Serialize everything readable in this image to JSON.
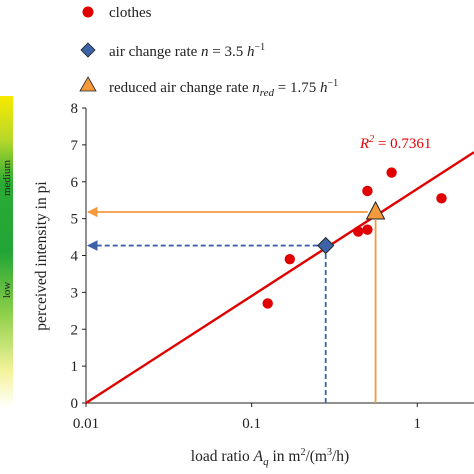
{
  "chart_data": {
    "type": "scatter",
    "x_scale": "log",
    "xlim": [
      0.01,
      2.2
    ],
    "ylim": [
      0,
      8
    ],
    "x_ticks": [
      "0.01",
      "0.1",
      "1"
    ],
    "x_tick_values": [
      0.01,
      0.1,
      1
    ],
    "y_ticks": [
      "0",
      "1",
      "2",
      "3",
      "4",
      "5",
      "6",
      "7",
      "8"
    ],
    "y_tick_values": [
      0,
      1,
      2,
      3,
      4,
      5,
      6,
      7,
      8
    ],
    "xlabel": "load ratio A_q in m²/(m³/h)",
    "xlabel_parts": {
      "pre": "load ratio ",
      "var": "A",
      "sub": "q",
      "post": " in m²/(m³/h)"
    },
    "ylabel": "perceived intensity in pi",
    "grid": false,
    "legend_position": "top-left",
    "legend": [
      {
        "marker": "circle",
        "color": "#e00000",
        "label": "clothes"
      },
      {
        "marker": "diamond",
        "color": "#3d62a8",
        "label_pre": "air change rate ",
        "label_math": "n = 3.5 h⁻¹"
      },
      {
        "marker": "triangle",
        "color": "#f59a3c",
        "label_pre": "reduced air change rate ",
        "label_math": "n_red = 1.75 h⁻¹"
      }
    ],
    "series": [
      {
        "name": "clothes",
        "color": "#e00000",
        "points": [
          {
            "x": 0.125,
            "y": 2.7
          },
          {
            "x": 0.17,
            "y": 3.9
          },
          {
            "x": 0.44,
            "y": 4.65
          },
          {
            "x": 0.5,
            "y": 4.7
          },
          {
            "x": 0.5,
            "y": 5.75
          },
          {
            "x": 0.7,
            "y": 6.25
          },
          {
            "x": 1.4,
            "y": 5.55
          }
        ]
      }
    ],
    "fit_line": {
      "color": "#e00000",
      "points": [
        {
          "x": 0.01,
          "y": 0
        },
        {
          "x": 2.2,
          "y": 6.8
        }
      ],
      "annotation": "R² = 0.7361"
    },
    "markers": [
      {
        "name": "air change rate",
        "shape": "diamond",
        "color": "#3d62a8",
        "x": 0.28,
        "y": 4.27,
        "guide_style": "dashed"
      },
      {
        "name": "reduced air change rate",
        "shape": "triangle",
        "color": "#f59a3c",
        "x": 0.56,
        "y": 5.18,
        "guide_style": "solid"
      }
    ],
    "intensity_bands": [
      {
        "label": "low",
        "color_bottom": "#f5e400",
        "color_top": "#21a535"
      },
      {
        "label": "medium",
        "color_bottom": "#21a535",
        "color_top": "#f5e400"
      }
    ]
  }
}
